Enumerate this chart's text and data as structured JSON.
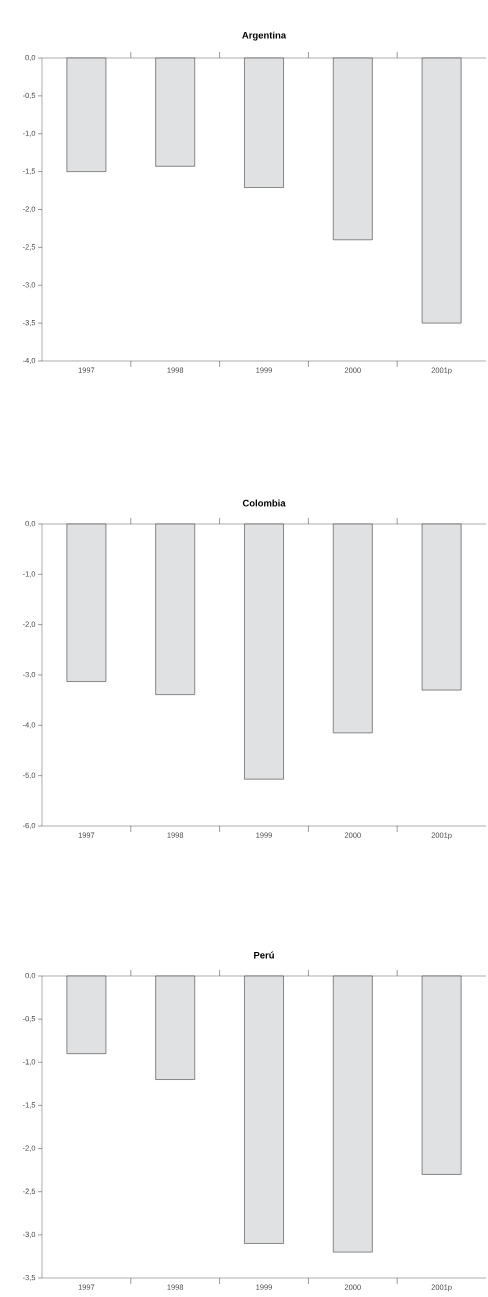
{
  "chart_data": [
    {
      "type": "bar",
      "title": "Argentina",
      "categories": [
        "1997",
        "1998",
        "1999",
        "2000",
        "2001p"
      ],
      "values": [
        -1.5,
        -1.43,
        -1.71,
        -2.4,
        -3.5
      ],
      "color": "#e0e1e3",
      "ylim": [
        -4.0,
        0.0
      ],
      "yticks": [
        {
          "value": 0,
          "label": "0,0"
        },
        {
          "value": -0.5,
          "label": "-0,5"
        },
        {
          "value": -1,
          "label": "-1,0"
        },
        {
          "value": -1.5,
          "label": "-1,5"
        },
        {
          "value": -2,
          "label": "-2,0"
        },
        {
          "value": -2.5,
          "label": "-2,5"
        },
        {
          "value": -3,
          "label": "-3,0"
        },
        {
          "value": -3.5,
          "label": "-3,5"
        },
        {
          "value": -4,
          "label": "-4,0"
        }
      ]
    },
    {
      "type": "bar",
      "title": "Colombia",
      "categories": [
        "1997",
        "1998",
        "1999",
        "2000",
        "2001p"
      ],
      "values": [
        -3.13,
        -3.39,
        -5.07,
        -4.15,
        -3.3
      ],
      "color": "#e0e1e3",
      "ylim": [
        -6.0,
        0.0
      ],
      "yticks": [
        {
          "value": 0,
          "label": "0,0"
        },
        {
          "value": -1,
          "label": "-1,0"
        },
        {
          "value": -2,
          "label": "-2,0"
        },
        {
          "value": -3,
          "label": "-3,0"
        },
        {
          "value": -4,
          "label": "-4,0"
        },
        {
          "value": -5,
          "label": "-5,0"
        },
        {
          "value": -6,
          "label": "-6,0"
        }
      ]
    },
    {
      "type": "bar",
      "title": "Perú",
      "categories": [
        "1997",
        "1998",
        "1999",
        "2000",
        "2001p"
      ],
      "values": [
        -0.9,
        -1.2,
        -3.1,
        -3.2,
        -2.3
      ],
      "color": "#e0e1e3",
      "ylim": [
        -3.5,
        0.0
      ],
      "yticks": [
        {
          "value": 0,
          "label": "0,0"
        },
        {
          "value": -0.5,
          "label": "-0,5"
        },
        {
          "value": -1,
          "label": "-1,0"
        },
        {
          "value": -1.5,
          "label": "-1,5"
        },
        {
          "value": -2,
          "label": "-2,0"
        },
        {
          "value": -2.5,
          "label": "-2,5"
        },
        {
          "value": -3,
          "label": "-3,0"
        },
        {
          "value": -3.5,
          "label": "-3,5"
        }
      ]
    }
  ]
}
